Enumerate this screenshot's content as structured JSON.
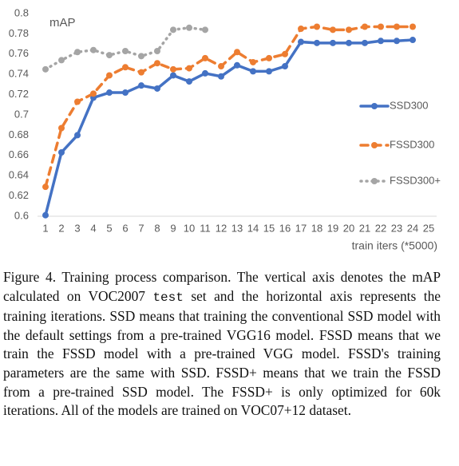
{
  "chart_data": {
    "type": "line",
    "y_label": "mAP",
    "x_label": "train iters (*5000)",
    "categories": [
      "1",
      "2",
      "3",
      "4",
      "5",
      "6",
      "7",
      "8",
      "9",
      "10",
      "11",
      "12",
      "13",
      "14",
      "15",
      "16",
      "17",
      "18",
      "19",
      "20",
      "21",
      "22",
      "23",
      "24",
      "25"
    ],
    "ylim": [
      0.6,
      0.8
    ],
    "yticks": [
      0.6,
      0.62,
      0.64,
      0.66,
      0.68,
      0.7,
      0.72,
      0.74,
      0.76,
      0.78,
      0.8
    ],
    "legend": "right",
    "series": [
      {
        "name": "SSD300",
        "color": "#4472c4",
        "style": "solid",
        "values": [
          0.601,
          0.663,
          0.68,
          0.717,
          0.722,
          0.722,
          0.729,
          0.726,
          0.739,
          0.733,
          0.741,
          0.738,
          0.749,
          0.743,
          0.743,
          0.748,
          0.772,
          0.771,
          0.771,
          0.771,
          0.771,
          0.773,
          0.773,
          0.774,
          null
        ]
      },
      {
        "name": "FSSD300",
        "color": "#ed7d31",
        "style": "dashed",
        "values": [
          0.629,
          0.687,
          0.713,
          0.721,
          0.739,
          0.747,
          0.742,
          0.751,
          0.745,
          0.746,
          0.756,
          0.748,
          0.762,
          0.752,
          0.756,
          0.76,
          0.785,
          0.787,
          0.784,
          0.784,
          0.787,
          0.787,
          0.787,
          0.787,
          null
        ]
      },
      {
        "name": "FSSD300+",
        "color": "#a5a5a5",
        "style": "dotted",
        "values": [
          0.745,
          0.754,
          0.762,
          0.764,
          0.759,
          0.763,
          0.758,
          0.763,
          0.784,
          0.786,
          0.784,
          null,
          null,
          null,
          null,
          null,
          null,
          null,
          null,
          null,
          null,
          null,
          null,
          null,
          null
        ]
      }
    ]
  },
  "caption": [
    "Figure 4. Training process comparison. The vertical axis denotes the mAP calculated on VOC2007",
    "test",
    "set and the horizontal axis represents the training iterations. SSD means that training the conventional SSD model with the default settings from a pre-trained VGG16 model. FSSD means that we train the FSSD model with a pre-trained VGG model. FSSD's training parameters are the same with SSD. FSSD+ means that we train the FSSD from a pre-trained SSD model. The FSSD+ is only optimized for 60k iterations. All of the models are trained on VOC07+12 dataset."
  ]
}
